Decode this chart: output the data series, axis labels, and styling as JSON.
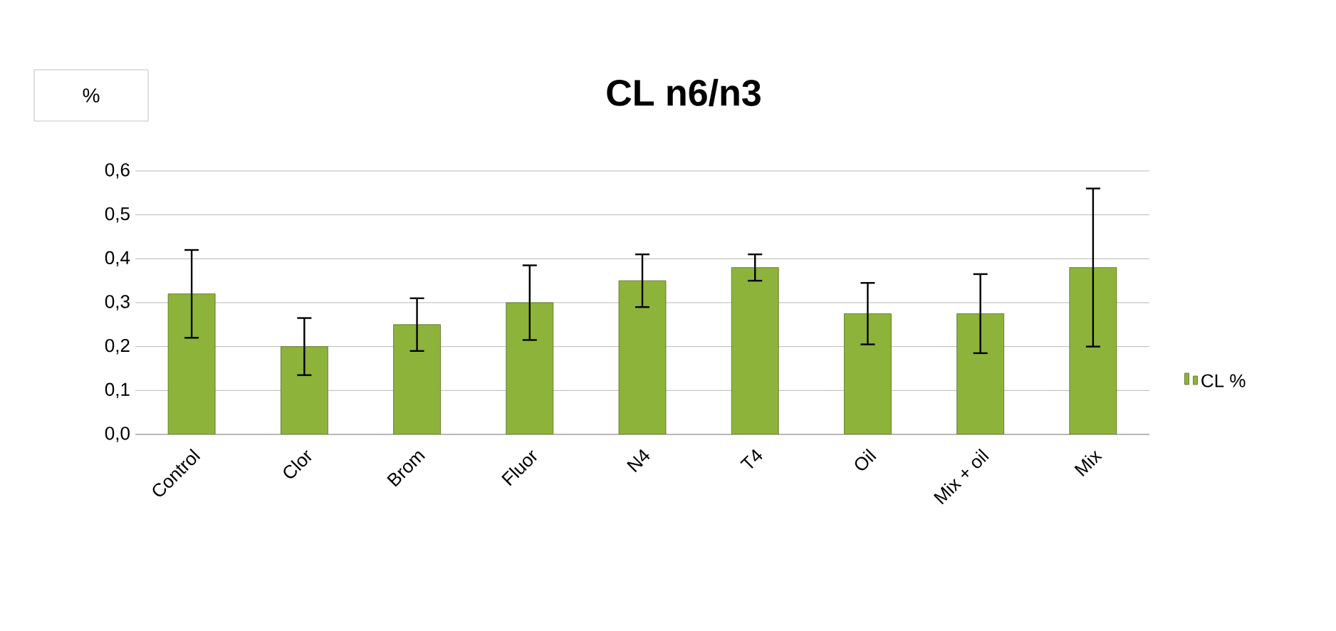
{
  "chart_data": {
    "type": "bar",
    "title": "CL  n6/n3",
    "ylabel": "%",
    "categories": [
      "Control",
      "Clor",
      "Brom",
      "Fluor",
      "N4",
      "T4",
      "Oil",
      "Mix + oil",
      "Mix"
    ],
    "series": [
      {
        "name": "CL %",
        "color": "#8db33a",
        "values": [
          0.32,
          0.2,
          0.25,
          0.3,
          0.35,
          0.38,
          0.275,
          0.275,
          0.38
        ],
        "errors": [
          0.1,
          0.065,
          0.06,
          0.085,
          0.06,
          0.03,
          0.07,
          0.09,
          0.18
        ]
      }
    ],
    "ylim": [
      0,
      0.6
    ],
    "yticks": [
      {
        "value": 0,
        "label": "0,0"
      },
      {
        "value": 0.1,
        "label": "0,1"
      },
      {
        "value": 0.2,
        "label": "0,2"
      },
      {
        "value": 0.3,
        "label": "0,3"
      },
      {
        "value": 0.4,
        "label": "0,4"
      },
      {
        "value": 0.5,
        "label": "0,5"
      },
      {
        "value": 0.6,
        "label": "0,6"
      }
    ],
    "grid": "y",
    "legend": "right"
  }
}
